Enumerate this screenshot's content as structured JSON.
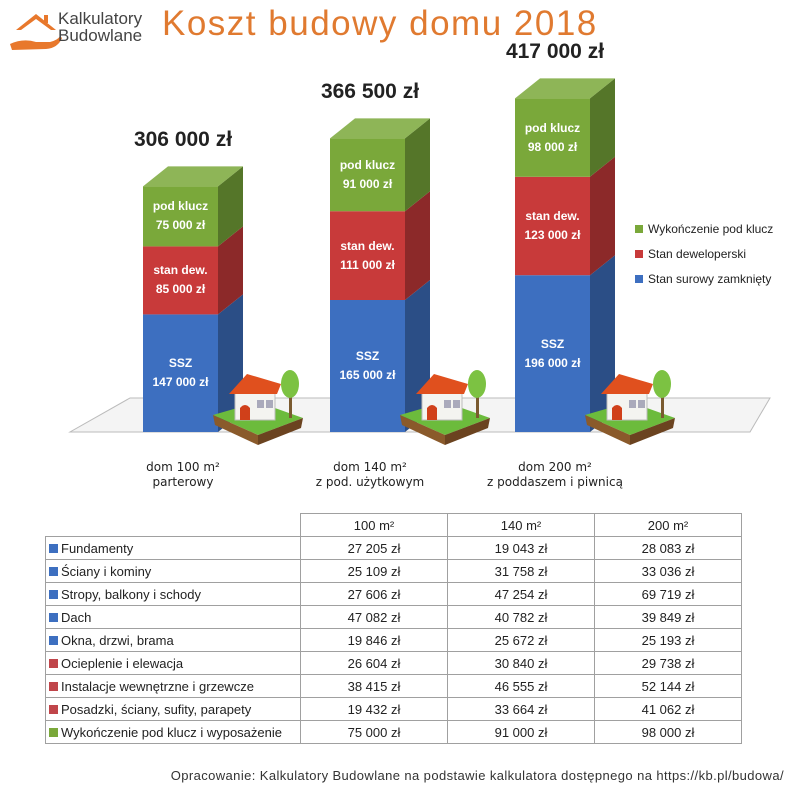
{
  "logo": {
    "line1": "Kalkulatory",
    "line2": "Budowlane",
    "color": "#e8782c"
  },
  "title": "Koszt budowy domu 2018",
  "chart_data": {
    "type": "bar",
    "stacked": true,
    "categories": [
      [
        "dom 100 m²",
        "parterowy"
      ],
      [
        "dom 140 m²",
        "z pod. użytkowym"
      ],
      [
        "dom 200 m²",
        "z poddaszem i piwnicą"
      ]
    ],
    "totals": [
      "306 000 zł",
      "366 500 zł",
      "417 000 zł"
    ],
    "series": [
      {
        "name": "Stan surowy zamknięty",
        "short": "SSZ",
        "color": "#3d6fc0",
        "values": [
          147000,
          165000,
          196000
        ],
        "labels": [
          "147 000 zł",
          "165 000 zł",
          "196 000 zł"
        ]
      },
      {
        "name": "Stan deweloperski",
        "short": "stan dew.",
        "color": "#c83a3a",
        "values": [
          85000,
          111000,
          123000
        ],
        "labels": [
          "85 000 zł",
          "111 000 zł",
          "123 000 zł"
        ]
      },
      {
        "name": "Wykończenie pod klucz",
        "short": "pod klucz",
        "color": "#7aa83a",
        "values": [
          75000,
          91000,
          98000
        ],
        "labels": [
          "75 000 zł",
          "91 000 zł",
          "98 000 zł"
        ]
      }
    ],
    "legend_position": "right"
  },
  "table": {
    "headers": [
      "100 m²",
      "140 m²",
      "200 m²"
    ],
    "rows": [
      {
        "label": "Fundamenty",
        "color": "#3d6fc0",
        "values": [
          "27 205 zł",
          "19 043 zł",
          "28 083 zł"
        ]
      },
      {
        "label": "Ściany i kominy",
        "color": "#3d6fc0",
        "values": [
          "25 109 zł",
          "31 758 zł",
          "33 036 zł"
        ]
      },
      {
        "label": "Stropy, balkony i schody",
        "color": "#3d6fc0",
        "values": [
          "27 606 zł",
          "47 254 zł",
          "69 719 zł"
        ]
      },
      {
        "label": "Dach",
        "color": "#3d6fc0",
        "values": [
          "47 082 zł",
          "40 782 zł",
          "39 849 zł"
        ]
      },
      {
        "label": "Okna, drzwi, brama",
        "color": "#3d6fc0",
        "values": [
          "19 846 zł",
          "25 672 zł",
          "25 193 zł"
        ]
      },
      {
        "label": "Ocieplenie i elewacja",
        "color": "#c0454a",
        "values": [
          "26 604 zł",
          "30 840 zł",
          "29 738 zł"
        ]
      },
      {
        "label": "Instalacje wewnętrzne i grzewcze",
        "color": "#c0454a",
        "values": [
          "38 415 zł",
          "46 555 zł",
          "52 144 zł"
        ]
      },
      {
        "label": "Posadzki, ściany, sufity, parapety",
        "color": "#c0454a",
        "values": [
          "19 432 zł",
          "33 664 zł",
          "41 062 zł"
        ]
      },
      {
        "label": "Wykończenie pod klucz i wyposażenie",
        "color": "#7aa83a",
        "values": [
          "75 000 zł",
          "91 000 zł",
          "98 000 zł"
        ]
      }
    ]
  },
  "footer": "Opracowanie: Kalkulatory Budowlane na podstawie kalkulatora dostępnego na https://kb.pl/budowa/"
}
